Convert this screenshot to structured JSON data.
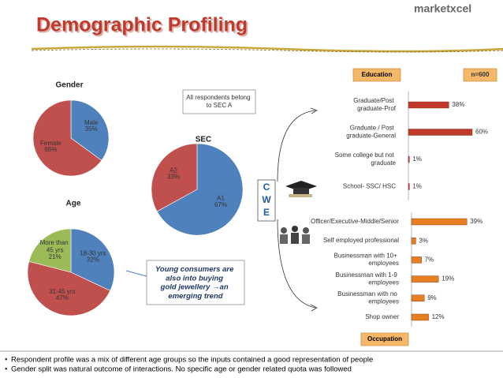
{
  "title": "Demographic Profiling",
  "logo": "marketxcel",
  "sample_size": "n=600",
  "sec_note": "All respondents belong to SEC A",
  "trend_note": "Young consumers are also into buying gold jewellery →an emerging trend",
  "cwe": [
    "C",
    "W",
    "E"
  ],
  "bullets": [
    "Respondent profile was a mix of different age groups  so the inputs contained a  good representation of people",
    "Gender split was natural outcome of interactions. No specific age or gender related quota was followed"
  ],
  "chart_data": [
    {
      "type": "pie",
      "title": "Gender",
      "categories": [
        "Male",
        "Female"
      ],
      "values": [
        35,
        65
      ],
      "value_labels": [
        "35%",
        "65%"
      ],
      "colors": [
        "#4f81bd",
        "#c0504d"
      ]
    },
    {
      "type": "pie",
      "title": "SEC",
      "categories": [
        "A1",
        "A2"
      ],
      "values": [
        67,
        33
      ],
      "value_labels": [
        "67%",
        "33%"
      ],
      "colors": [
        "#4f81bd",
        "#c0504d"
      ]
    },
    {
      "type": "pie",
      "title": "Age",
      "categories": [
        "18-30 yrs",
        "31-45 yrs",
        "More than 45 yrs"
      ],
      "values": [
        32,
        47,
        21
      ],
      "value_labels": [
        "32%",
        "47%",
        "21%"
      ],
      "colors": [
        "#4f81bd",
        "#c0504d",
        "#9bbb59"
      ]
    },
    {
      "type": "bar",
      "title": "Education",
      "categories": [
        "Graduate/Post graduate-Prof",
        "Graduate / Post graduate-General",
        "Some college but not graduate",
        "School- SSC/ HSC"
      ],
      "values": [
        38,
        60,
        1,
        1
      ],
      "value_labels": [
        "38%",
        "60%",
        "1%",
        "1%"
      ],
      "color": "#c0392b"
    },
    {
      "type": "bar",
      "title": "Occupation",
      "categories": [
        "Officer/Executive-Middle/Senior",
        "Self employed professional",
        "Businessman with 10+ employees",
        "Businessman with 1-9 employees",
        "Businessman with no employees",
        "Shop owner"
      ],
      "values": [
        39,
        3,
        7,
        19,
        9,
        12
      ],
      "value_labels": [
        "39%",
        "3%",
        "7%",
        "19%",
        "9%",
        "12%"
      ],
      "color": "#e67e22"
    }
  ]
}
